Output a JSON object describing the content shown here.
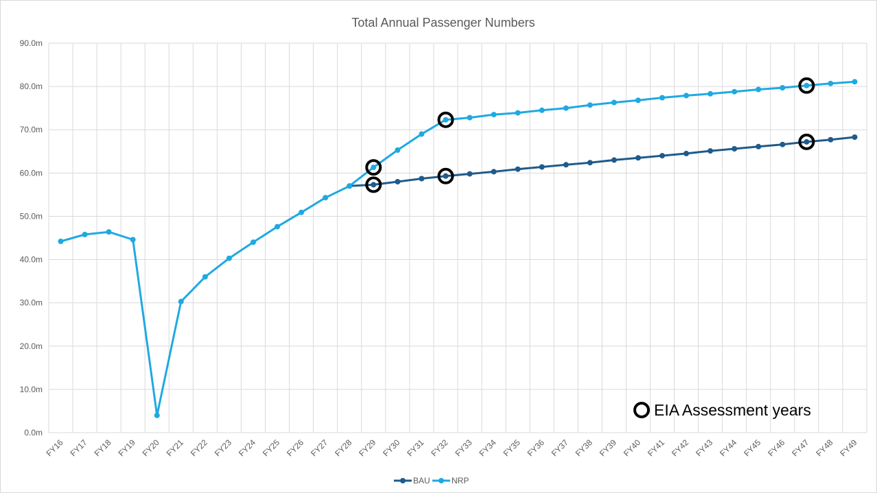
{
  "chart_data": {
    "type": "line",
    "title": "Total Annual Passenger Numbers",
    "xlabel": "",
    "ylabel": "",
    "categories": [
      "FY16",
      "FY17",
      "FY18",
      "FY19",
      "FY20",
      "FY21",
      "FY22",
      "FY23",
      "FY24",
      "FY25",
      "FY26",
      "FY27",
      "FY28",
      "FY29",
      "FY30",
      "FY31",
      "FY32",
      "FY33",
      "FY34",
      "FY35",
      "FY36",
      "FY37",
      "FY38",
      "FY39",
      "FY40",
      "FY41",
      "FY42",
      "FY43",
      "FY44",
      "FY45",
      "FY46",
      "FY47",
      "FY48",
      "FY49"
    ],
    "ylim": [
      0,
      90
    ],
    "yticks": [
      0,
      10,
      20,
      30,
      40,
      50,
      60,
      70,
      80,
      90
    ],
    "ytick_labels": [
      "0.0m",
      "10.0m",
      "20.0m",
      "30.0m",
      "40.0m",
      "50.0m",
      "60.0m",
      "70.0m",
      "80.0m",
      "90.0m"
    ],
    "grid": true,
    "legend_position": "bottom",
    "series": [
      {
        "name": "BAU",
        "color": "#1f5b8c",
        "values": [
          null,
          null,
          null,
          null,
          null,
          null,
          null,
          null,
          null,
          null,
          null,
          null,
          57.0,
          57.3,
          58.0,
          58.7,
          59.3,
          59.8,
          60.3,
          60.9,
          61.4,
          61.9,
          62.4,
          63.0,
          63.5,
          64.0,
          64.5,
          65.1,
          65.6,
          66.1,
          66.6,
          67.2,
          67.7,
          68.3
        ]
      },
      {
        "name": "NRP",
        "color": "#1fa9e1",
        "values": [
          44.2,
          45.8,
          46.4,
          44.6,
          4.0,
          30.3,
          36.0,
          40.3,
          44.0,
          47.6,
          50.9,
          54.3,
          57.0,
          61.3,
          65.3,
          69.0,
          72.3,
          72.8,
          73.5,
          73.9,
          74.5,
          75.0,
          75.7,
          76.3,
          76.8,
          77.4,
          77.9,
          78.3,
          78.8,
          79.3,
          79.7,
          80.2,
          80.7,
          81.1
        ]
      }
    ],
    "annotations": {
      "marker_label": "EIA Assessment years",
      "marked_points": [
        {
          "series": "BAU",
          "category": "FY29"
        },
        {
          "series": "NRP",
          "category": "FY29"
        },
        {
          "series": "BAU",
          "category": "FY32"
        },
        {
          "series": "NRP",
          "category": "FY32"
        },
        {
          "series": "BAU",
          "category": "FY47"
        },
        {
          "series": "NRP",
          "category": "FY47"
        }
      ]
    }
  }
}
